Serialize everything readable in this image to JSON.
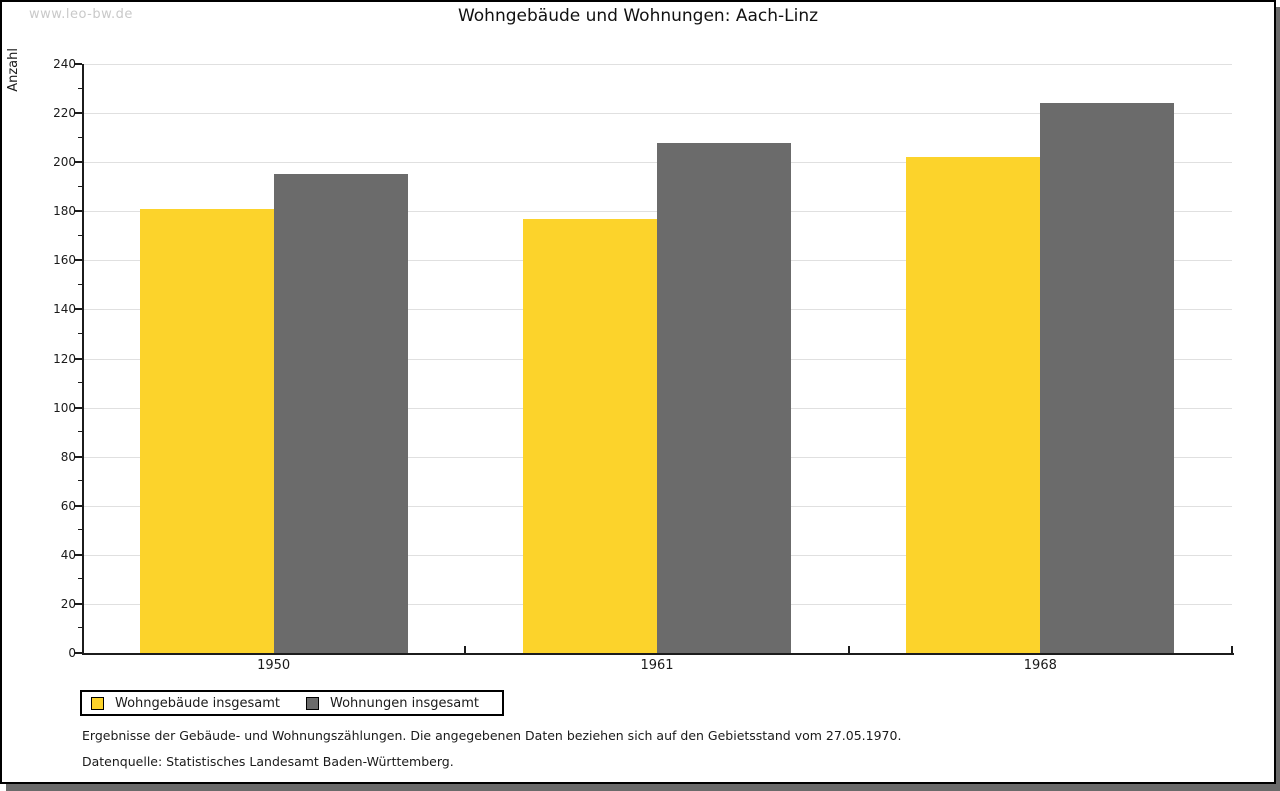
{
  "watermark": "www.leo-bw.de",
  "header": {
    "title": "Wohngebäude und Wohnungen: Aach-Linz"
  },
  "chart_data": {
    "type": "bar",
    "title": "Wohngebäude und Wohnungen: Aach-Linz",
    "xlabel": "",
    "ylabel": "Anzahl",
    "categories": [
      "1950",
      "1961",
      "1968"
    ],
    "series": [
      {
        "name": "Wohngebäude insgesamt",
        "color": "#fcd32b",
        "values": [
          181,
          177,
          202
        ]
      },
      {
        "name": "Wohnungen insgesamt",
        "color": "#6b6b6b",
        "values": [
          195,
          208,
          224
        ]
      }
    ],
    "ylim": [
      0,
      240
    ],
    "ytick_major": 20,
    "ytick_minor": 10,
    "grid": true,
    "legend_position": "bottom-left",
    "colors": {
      "gridline": "#e0e0e0",
      "axis": "#1c1c1c",
      "watermark": "#c9c9c9"
    }
  },
  "footnotes": [
    "Ergebnisse der Gebäude- und Wohnungszählungen. Die angegebenen Daten beziehen sich auf den Gebietsstand vom 27.05.1970.",
    "Datenquelle: Statistisches Landesamt Baden-Württemberg."
  ]
}
